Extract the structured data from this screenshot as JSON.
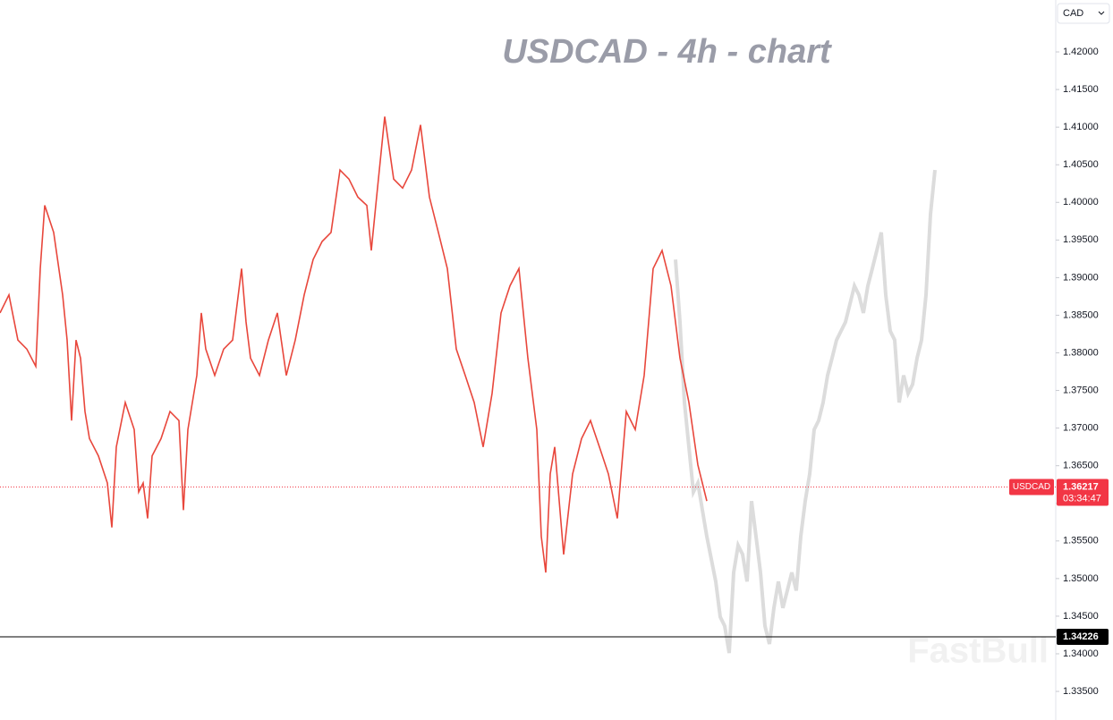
{
  "chart_data": {
    "type": "line",
    "title": "USDCAD - 4h - chart",
    "currency": "CAD",
    "watermark": "FastBull",
    "series": [
      {
        "name": "USDCAD",
        "color": "#e8473c",
        "x": [
          0,
          10,
          20,
          30,
          40,
          45,
          50,
          60,
          70,
          75,
          80,
          85,
          90,
          95,
          100,
          110,
          120,
          125,
          130,
          140,
          150,
          155,
          160,
          165,
          170,
          180,
          190,
          200,
          205,
          210,
          220,
          225,
          230,
          240,
          250,
          260,
          270,
          275,
          280,
          290,
          300,
          310,
          320,
          330,
          340,
          350,
          360,
          370,
          380,
          390,
          400,
          410,
          415,
          420,
          430,
          440,
          450,
          460,
          470,
          480,
          490,
          500,
          510,
          520,
          530,
          540,
          550,
          560,
          570,
          580,
          590,
          600,
          605,
          610,
          615,
          620,
          630,
          640,
          650,
          660,
          670,
          680,
          690,
          700,
          710,
          720,
          730,
          740,
          750,
          760,
          770,
          780,
          790
        ],
        "values": [
          1.3853,
          1.3877,
          1.3817,
          1.3805,
          1.3782,
          1.3912,
          1.3996,
          1.396,
          1.3877,
          1.3817,
          1.371,
          1.3817,
          1.3793,
          1.3722,
          1.3686,
          1.3663,
          1.3627,
          1.3568,
          1.3675,
          1.3734,
          1.3698,
          1.3615,
          1.3627,
          1.358,
          1.3663,
          1.3686,
          1.3722,
          1.371,
          1.3591,
          1.3698,
          1.377,
          1.3853,
          1.3805,
          1.377,
          1.3805,
          1.3817,
          1.3912,
          1.3841,
          1.3793,
          1.377,
          1.3817,
          1.3853,
          1.377,
          1.3817,
          1.3877,
          1.3924,
          1.3948,
          1.396,
          1.4043,
          1.4031,
          1.4007,
          1.3996,
          1.3936,
          1.3996,
          1.4114,
          1.4031,
          1.4019,
          1.4043,
          1.4103,
          1.4007,
          1.396,
          1.3912,
          1.3805,
          1.377,
          1.3734,
          1.3675,
          1.3746,
          1.3853,
          1.3889,
          1.3912,
          1.3793,
          1.3698,
          1.3556,
          1.3508,
          1.3639,
          1.3675,
          1.3532,
          1.3639,
          1.3686,
          1.371,
          1.3675,
          1.3639,
          1.358,
          1.3722,
          1.3698,
          1.377,
          1.3912,
          1.3936,
          1.3889,
          1.3793,
          1.3734,
          1.3651,
          1.3603
        ]
      },
      {
        "color": "#dcdcdc",
        "x": [
          755,
          760,
          765,
          770,
          775,
          780,
          790,
          800,
          805,
          810,
          815,
          820,
          825,
          830,
          835,
          840,
          845,
          850,
          855,
          860,
          865,
          870,
          875,
          880,
          885,
          890,
          895,
          900,
          905,
          910,
          915,
          920,
          925,
          930,
          935,
          940,
          945,
          950,
          955,
          960,
          965,
          970,
          975,
          980,
          985,
          990,
          995,
          1000,
          1005,
          1010,
          1015,
          1020,
          1025,
          1030,
          1035,
          1040,
          1045
        ],
        "values": [
          1.3924,
          1.3841,
          1.3734,
          1.3675,
          1.3615,
          1.3627,
          1.3556,
          1.3496,
          1.3449,
          1.3437,
          1.3401,
          1.3508,
          1.3544,
          1.3532,
          1.3496,
          1.3603,
          1.3556,
          1.3508,
          1.3437,
          1.3413,
          1.3461,
          1.3496,
          1.3461,
          1.3484,
          1.3508,
          1.3484,
          1.3556,
          1.3603,
          1.3639,
          1.3698,
          1.371,
          1.3734,
          1.377,
          1.3793,
          1.3817,
          1.3829,
          1.3841,
          1.3865,
          1.3889,
          1.3877,
          1.3853,
          1.3889,
          1.3912,
          1.3936,
          1.396,
          1.3877,
          1.3829,
          1.3817,
          1.3734,
          1.377,
          1.3746,
          1.3758,
          1.3793,
          1.3817,
          1.3877,
          1.3984,
          1.4043
        ]
      }
    ],
    "xlim": [
      0,
      1180
    ],
    "ylim": [
      1.3312,
      1.4269
    ],
    "yticks": [
      {
        "value": 1.335,
        "label": "1.33500"
      },
      {
        "value": 1.34,
        "label": "1.34000"
      },
      {
        "value": 1.345,
        "label": "1.34500"
      },
      {
        "value": 1.35,
        "label": "1.35000"
      },
      {
        "value": 1.355,
        "label": "1.35500"
      },
      {
        "value": 1.36,
        "label": "1.36000"
      },
      {
        "value": 1.365,
        "label": "1.36500"
      },
      {
        "value": 1.37,
        "label": "1.37000"
      },
      {
        "value": 1.375,
        "label": "1.37500"
      },
      {
        "value": 1.38,
        "label": "1.38000"
      },
      {
        "value": 1.385,
        "label": "1.38500"
      },
      {
        "value": 1.39,
        "label": "1.39000"
      },
      {
        "value": 1.395,
        "label": "1.39500"
      },
      {
        "value": 1.4,
        "label": "1.40000"
      },
      {
        "value": 1.405,
        "label": "1.40500"
      },
      {
        "value": 1.41,
        "label": "1.41000"
      },
      {
        "value": 1.415,
        "label": "1.41500"
      },
      {
        "value": 1.42,
        "label": "1.42000"
      }
    ],
    "price_lines": [
      {
        "value": 1.36217,
        "label": "1.36217",
        "name": "USDCAD",
        "countdown": "03:34:47",
        "color": "#f23645"
      },
      {
        "value": 1.34226,
        "label": "1.34226",
        "color": "#000000"
      }
    ]
  }
}
